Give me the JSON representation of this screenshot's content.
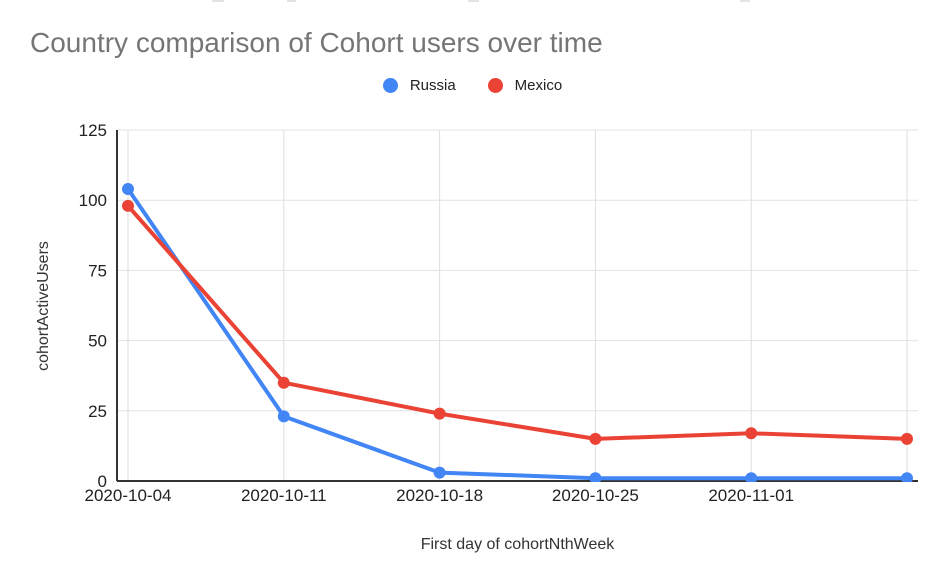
{
  "title": "Country comparison of Cohort users over time",
  "chart_data": {
    "type": "line",
    "categories": [
      "2020-10-04",
      "2020-10-11",
      "2020-10-18",
      "2020-10-25",
      "2020-11-01",
      ""
    ],
    "series": [
      {
        "name": "Russia",
        "color": "#4285F4",
        "values": [
          104,
          23,
          3,
          1,
          1,
          1
        ]
      },
      {
        "name": "Mexico",
        "color": "#EA4335",
        "values": [
          98,
          35,
          24,
          15,
          17,
          15
        ]
      }
    ],
    "title": "Country comparison of Cohort users over time",
    "xlabel": "First day of cohortNthWeek",
    "ylabel": "cohortActiveUsers",
    "y_ticks": [
      0,
      25,
      50,
      75,
      100,
      125
    ],
    "ylim": [
      0,
      125
    ],
    "grid": true,
    "legend_position": "top"
  },
  "colors": {
    "title_text": "#757575",
    "tick_text": "#222222",
    "gridline": "#e3e3e3",
    "vertical_gridline": "#dedede",
    "axis_line": "#333333"
  }
}
